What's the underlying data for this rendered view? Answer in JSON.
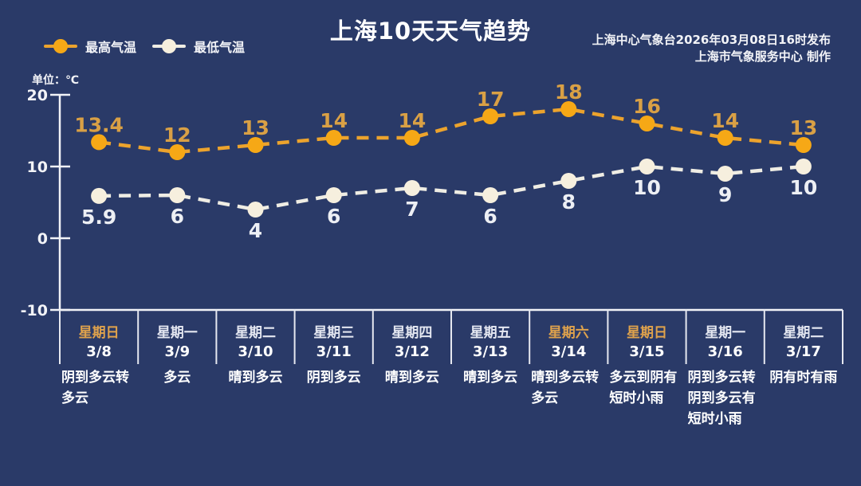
{
  "header": {
    "title": "上海10天天气趋势",
    "publisher_line1": "上海中心气象台2026年03月08日16时发布",
    "publisher_line2": "上海市气象服务中心 制作"
  },
  "legend": {
    "high_label": "最高气温",
    "low_label": "最低气温"
  },
  "unit_label": "单位：℃",
  "colors": {
    "background": "#2A3A68",
    "axis": "#F2F3F7",
    "separator": "#E6E8F0",
    "high_line": "#ECA32D",
    "high_marker": "#F6A816",
    "high_value_label": "#D9A045",
    "low_line": "#EFEDE4",
    "low_marker": "#F6EFDE",
    "low_value_label": "#EDEFF4",
    "weekend_day": "#DFA24C",
    "weekday_day": "#E4E7F1"
  },
  "chart_data": {
    "type": "line",
    "title": "上海10天天气趋势",
    "unit": "℃",
    "x_categories": [
      "3/8",
      "3/9",
      "3/10",
      "3/11",
      "3/12",
      "3/13",
      "3/14",
      "3/15",
      "3/16",
      "3/17"
    ],
    "y_ticks": [
      20,
      10,
      0,
      -10
    ],
    "ylim": [
      -10,
      20
    ],
    "grid": false,
    "line_style": "dashed",
    "legend_position": "top-left",
    "series": [
      {
        "name": "最高气温",
        "values": [
          13.4,
          12,
          13,
          14,
          14,
          17,
          18,
          16,
          14,
          13
        ]
      },
      {
        "name": "最低气温",
        "values": [
          5.9,
          6,
          4,
          6,
          7,
          6,
          8,
          10,
          9,
          10
        ]
      }
    ]
  },
  "columns": [
    {
      "day": "星期日",
      "date": "3/8",
      "weather": "阴到多云转多云",
      "weekend": true
    },
    {
      "day": "星期一",
      "date": "3/9",
      "weather": "多云",
      "weekend": false
    },
    {
      "day": "星期二",
      "date": "3/10",
      "weather": "晴到多云",
      "weekend": false
    },
    {
      "day": "星期三",
      "date": "3/11",
      "weather": "阴到多云",
      "weekend": false
    },
    {
      "day": "星期四",
      "date": "3/12",
      "weather": "晴到多云",
      "weekend": false
    },
    {
      "day": "星期五",
      "date": "3/13",
      "weather": "晴到多云",
      "weekend": false
    },
    {
      "day": "星期六",
      "date": "3/14",
      "weather": "晴到多云转多云",
      "weekend": true
    },
    {
      "day": "星期日",
      "date": "3/15",
      "weather": "多云到阴有短时小雨",
      "weekend": true
    },
    {
      "day": "星期一",
      "date": "3/16",
      "weather": "阴到多云转阴到多云有短时小雨",
      "weekend": false
    },
    {
      "day": "星期二",
      "date": "3/17",
      "weather": "阴有时有雨",
      "weekend": false
    }
  ]
}
